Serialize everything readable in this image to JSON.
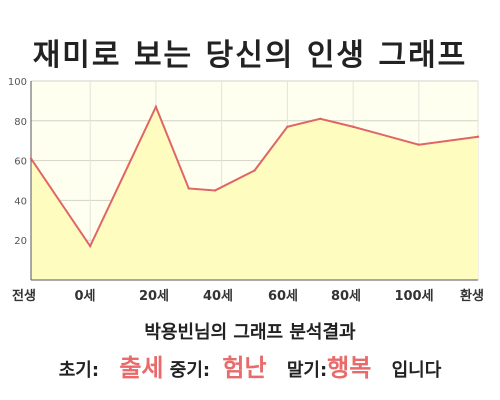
{
  "title": "재미로 보는 당신의 인생 그래프",
  "subtitle": "박용빈님의 그래프 분석결과",
  "summary": {
    "early_label": "초기:",
    "early_value": "출세",
    "middle_label": "중기:",
    "middle_value": "험난",
    "late_label": "말기:",
    "late_value": "행복",
    "ending": "입니다"
  },
  "colors": {
    "line": "#e06666",
    "fill": "#fffcbf",
    "plot_background": "#fffff0"
  },
  "chart_data": {
    "type": "area",
    "ylim": [
      0,
      100
    ],
    "yticks": [
      "20",
      "40",
      "60",
      "80",
      "100"
    ],
    "grid": true,
    "x_labels": [
      "전생",
      "0세",
      "20세",
      "40세",
      "60세",
      "80세",
      "100세",
      "환생"
    ],
    "points": [
      {
        "x": -18,
        "y": 61
      },
      {
        "x": 0,
        "y": 17
      },
      {
        "x": 20,
        "y": 87
      },
      {
        "x": 30,
        "y": 46
      },
      {
        "x": 38,
        "y": 45
      },
      {
        "x": 50,
        "y": 55
      },
      {
        "x": 60,
        "y": 77
      },
      {
        "x": 70,
        "y": 81
      },
      {
        "x": 80,
        "y": 77
      },
      {
        "x": 100,
        "y": 68
      },
      {
        "x": 118,
        "y": 72
      }
    ]
  }
}
